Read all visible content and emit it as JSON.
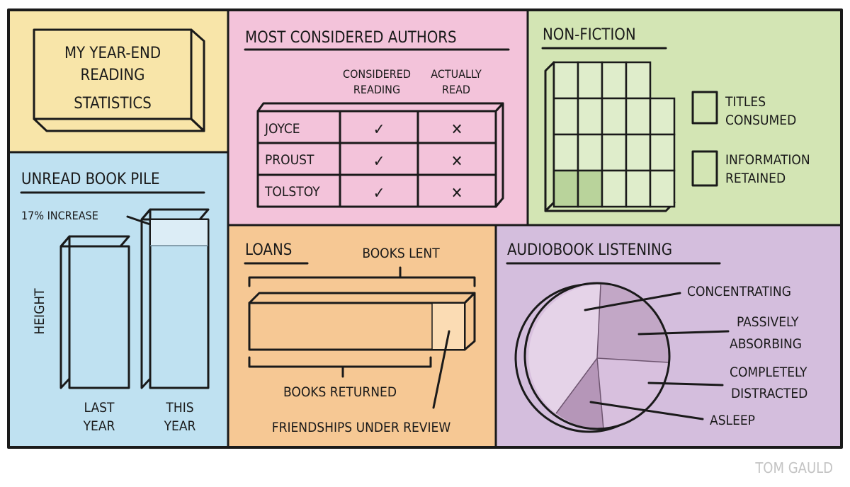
{
  "title_panel": {
    "title_lines": [
      "MY YEAR-END",
      "READING",
      "STATISTICS"
    ]
  },
  "authors_panel": {
    "heading": "MOST CONSIDERED AUTHORS",
    "columns": [
      [
        "CONSIDERED",
        "READING"
      ],
      [
        "ACTUALLY",
        "READ"
      ]
    ],
    "rows": [
      {
        "author": "JOYCE",
        "considered": "✓",
        "read": "✕"
      },
      {
        "author": "PROUST",
        "considered": "✓",
        "read": "✕"
      },
      {
        "author": "TOLSTOY",
        "considered": "✓",
        "read": "✕"
      }
    ]
  },
  "nonfiction_panel": {
    "heading": "NON-FICTION",
    "legend": [
      {
        "lines": [
          "TITLES",
          "CONSUMED"
        ],
        "color": "#dfedcb"
      },
      {
        "lines": [
          "INFORMATION",
          "RETAINED"
        ],
        "color": "#b9d39b"
      }
    ]
  },
  "unread_panel": {
    "heading": "UNREAD BOOK PILE",
    "annotation": "17% INCREASE",
    "y_label": "HEIGHT",
    "bars": [
      {
        "lines": [
          "LAST",
          "YEAR"
        ]
      },
      {
        "lines": [
          "THIS",
          "YEAR"
        ]
      }
    ]
  },
  "loans_panel": {
    "heading": "LOANS",
    "books_lent": "BOOKS LENT",
    "books_returned": "BOOKS RETURNED",
    "friendships": "FRIENDSHIPS UNDER REVIEW"
  },
  "audiobook_panel": {
    "heading": "AUDIOBOOK LISTENING",
    "labels": [
      [
        "CONCENTRATING"
      ],
      [
        "PASSIVELY",
        "ABSORBING"
      ],
      [
        "COMPLETELY",
        "DISTRACTED"
      ],
      [
        "ASLEEP"
      ]
    ]
  },
  "signature": "TOM GAULD",
  "colors": {
    "yellow": "#f8e5a9",
    "pink": "#f3c3da",
    "green": "#d3e5b4",
    "blue": "#bfe1f1",
    "orange": "#f6c894",
    "purple": "#d4bedd"
  }
}
